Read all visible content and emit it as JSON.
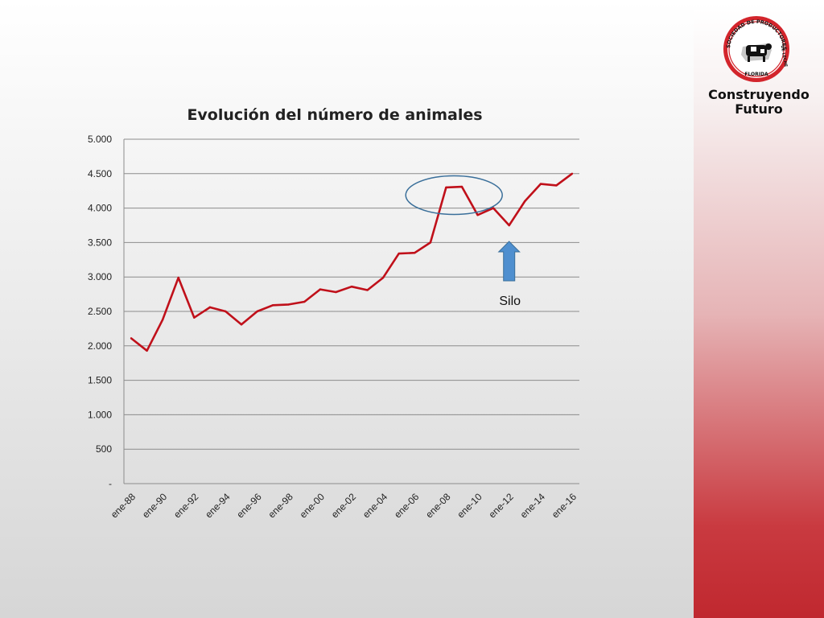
{
  "brand": {
    "seal_text_top": "SOCIEDAD DE PRODUCTORES",
    "seal_text_right": "DE LECHE",
    "seal_text_bottom": "FLORIDA",
    "line1": "Construyendo",
    "line2": "Futuro",
    "colors": {
      "seal_red": "#d3252c",
      "band_red": "#c0282f"
    },
    "icon": "cow-icon"
  },
  "chart_data": {
    "type": "line",
    "title": "Evolución del número de animales",
    "xlabel": "",
    "ylabel": "",
    "ylim": [
      0,
      5000
    ],
    "y_ticks": [
      "-",
      "500",
      "1.000",
      "1.500",
      "2.000",
      "2.500",
      "3.000",
      "3.500",
      "4.000",
      "4.500",
      "5.000"
    ],
    "x_tick_labels": [
      "ene-88",
      "ene-90",
      "ene-92",
      "ene-94",
      "ene-96",
      "ene-98",
      "ene-00",
      "ene-02",
      "ene-04",
      "ene-06",
      "ene-08",
      "ene-10",
      "ene-12",
      "ene-14",
      "ene-16"
    ],
    "x": [
      "ene-88",
      "ene-89",
      "ene-90",
      "ene-91",
      "ene-92",
      "ene-93",
      "ene-94",
      "ene-95",
      "ene-96",
      "ene-97",
      "ene-98",
      "ene-99",
      "ene-00",
      "ene-01",
      "ene-02",
      "ene-03",
      "ene-04",
      "ene-05",
      "ene-06",
      "ene-07",
      "ene-08",
      "ene-09",
      "ene-10",
      "ene-11",
      "ene-12",
      "ene-13",
      "ene-14",
      "ene-15",
      "ene-16"
    ],
    "series": [
      {
        "values": [
          2110,
          1930,
          2380,
          2990,
          2410,
          2560,
          2500,
          2310,
          2500,
          2590,
          2600,
          2640,
          2820,
          2780,
          2860,
          2810,
          2990,
          3340,
          3350,
          3500,
          4300,
          4310,
          3900,
          4000,
          3750,
          4100,
          4350,
          4330,
          4500
        ],
        "color": "#c0101a"
      }
    ],
    "grid": true,
    "annotations": [
      {
        "type": "ellipse",
        "target_range": [
          "ene-08",
          "ene-09"
        ],
        "color": "#3a6f9a"
      },
      {
        "type": "arrow",
        "label": "Silo",
        "target": "ene-12",
        "color": "#4f8fcf"
      }
    ]
  }
}
